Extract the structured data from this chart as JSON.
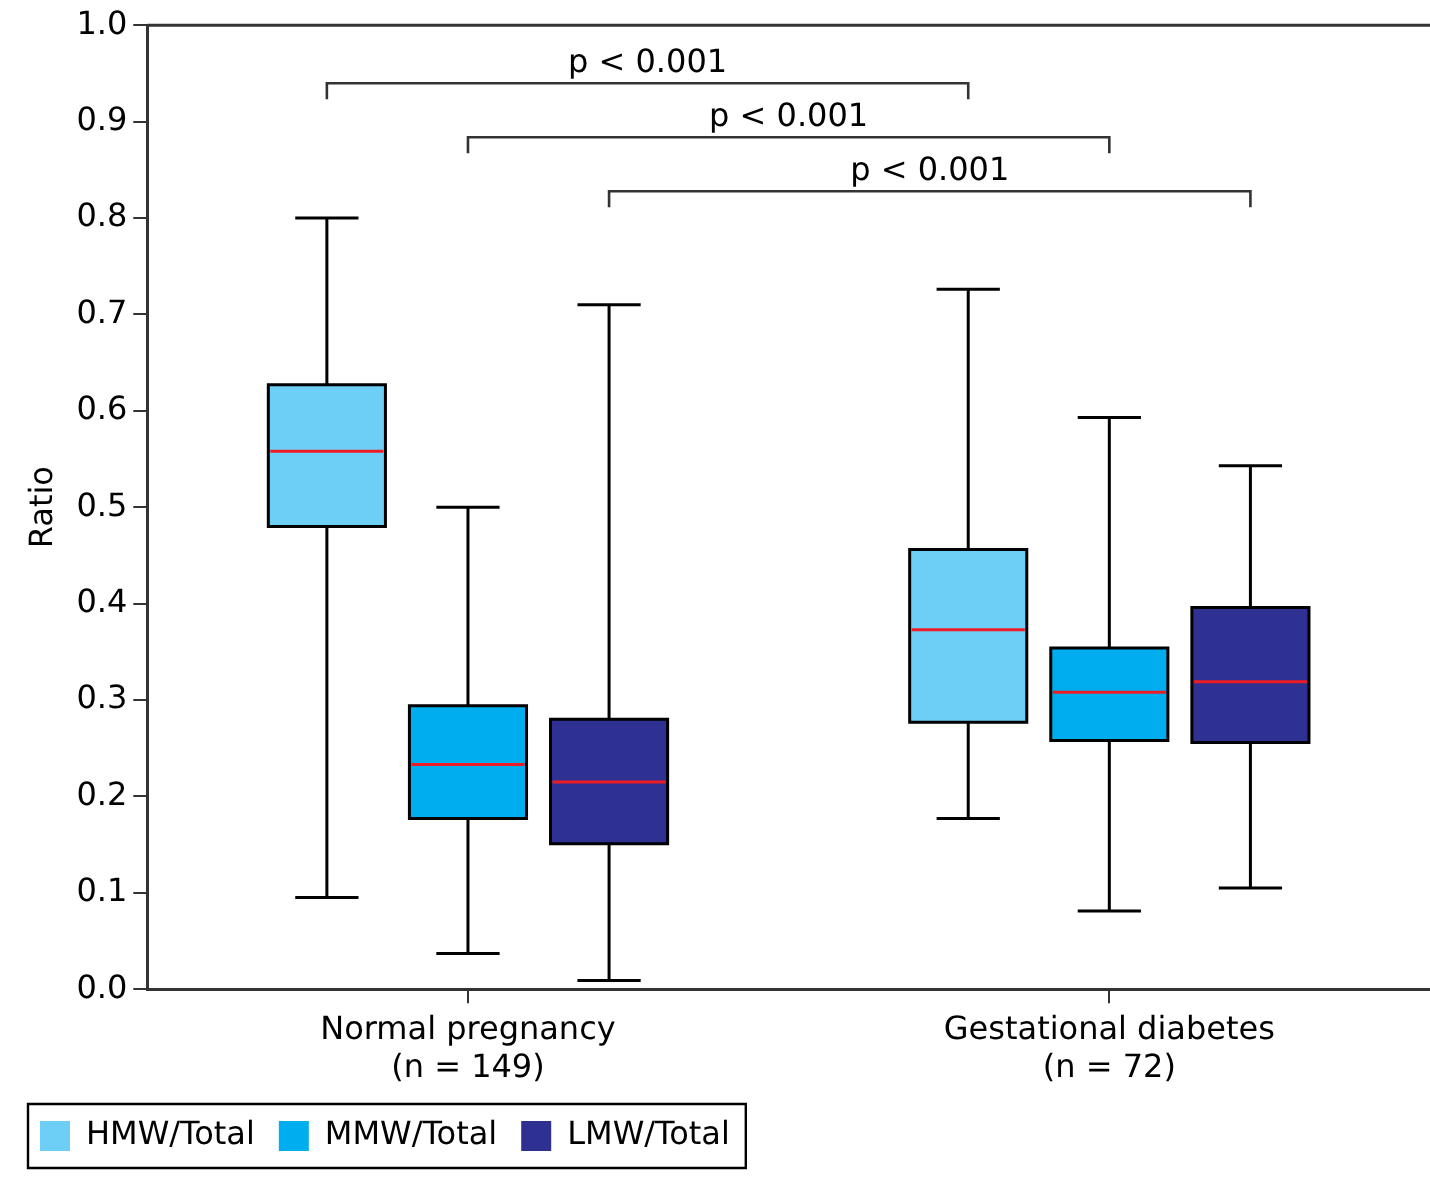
{
  "chart_data": {
    "type": "box",
    "ylabel": "Ratio",
    "categories": [
      "Normal pregnancy\n(n = 149)",
      "Gestational diabetes\n(n = 72)"
    ],
    "ylim": [
      0,
      1
    ],
    "yticks": [
      {
        "value": 0,
        "label": "0.0"
      },
      0.1,
      0.2,
      0.3,
      0.4,
      0.5,
      0.6,
      0.7,
      0.8,
      0.9,
      {
        "value": 1,
        "label": "1.0"
      }
    ],
    "grid": false,
    "legend": "bottom left",
    "annotations": [
      "p < 0.001",
      "p < 0.001",
      "p < 0.001"
    ],
    "series": [
      {
        "name": "HMW/Total",
        "color": "#6dcff6",
        "boxes": [
          {
            "low": 0.095,
            "q1": 0.48,
            "median": 0.558,
            "q3": 0.627,
            "high": 0.8
          },
          {
            "low": 0.177,
            "q1": 0.277,
            "median": 0.373,
            "q3": 0.456,
            "high": 0.726
          }
        ]
      },
      {
        "name": "MMW/Total",
        "color": "#00aeef",
        "boxes": [
          {
            "low": 0.037,
            "q1": 0.177,
            "median": 0.233,
            "q3": 0.294,
            "high": 0.5
          },
          {
            "low": 0.081,
            "q1": 0.258,
            "median": 0.308,
            "q3": 0.354,
            "high": 0.593
          }
        ]
      },
      {
        "name": "LMW/Total",
        "color": "#2e3192",
        "boxes": [
          {
            "low": 0.009,
            "q1": 0.151,
            "median": 0.215,
            "q3": 0.28,
            "high": 0.71
          },
          {
            "low": 0.105,
            "q1": 0.256,
            "median": 0.319,
            "q3": 0.396,
            "high": 0.543
          }
        ]
      }
    ]
  }
}
